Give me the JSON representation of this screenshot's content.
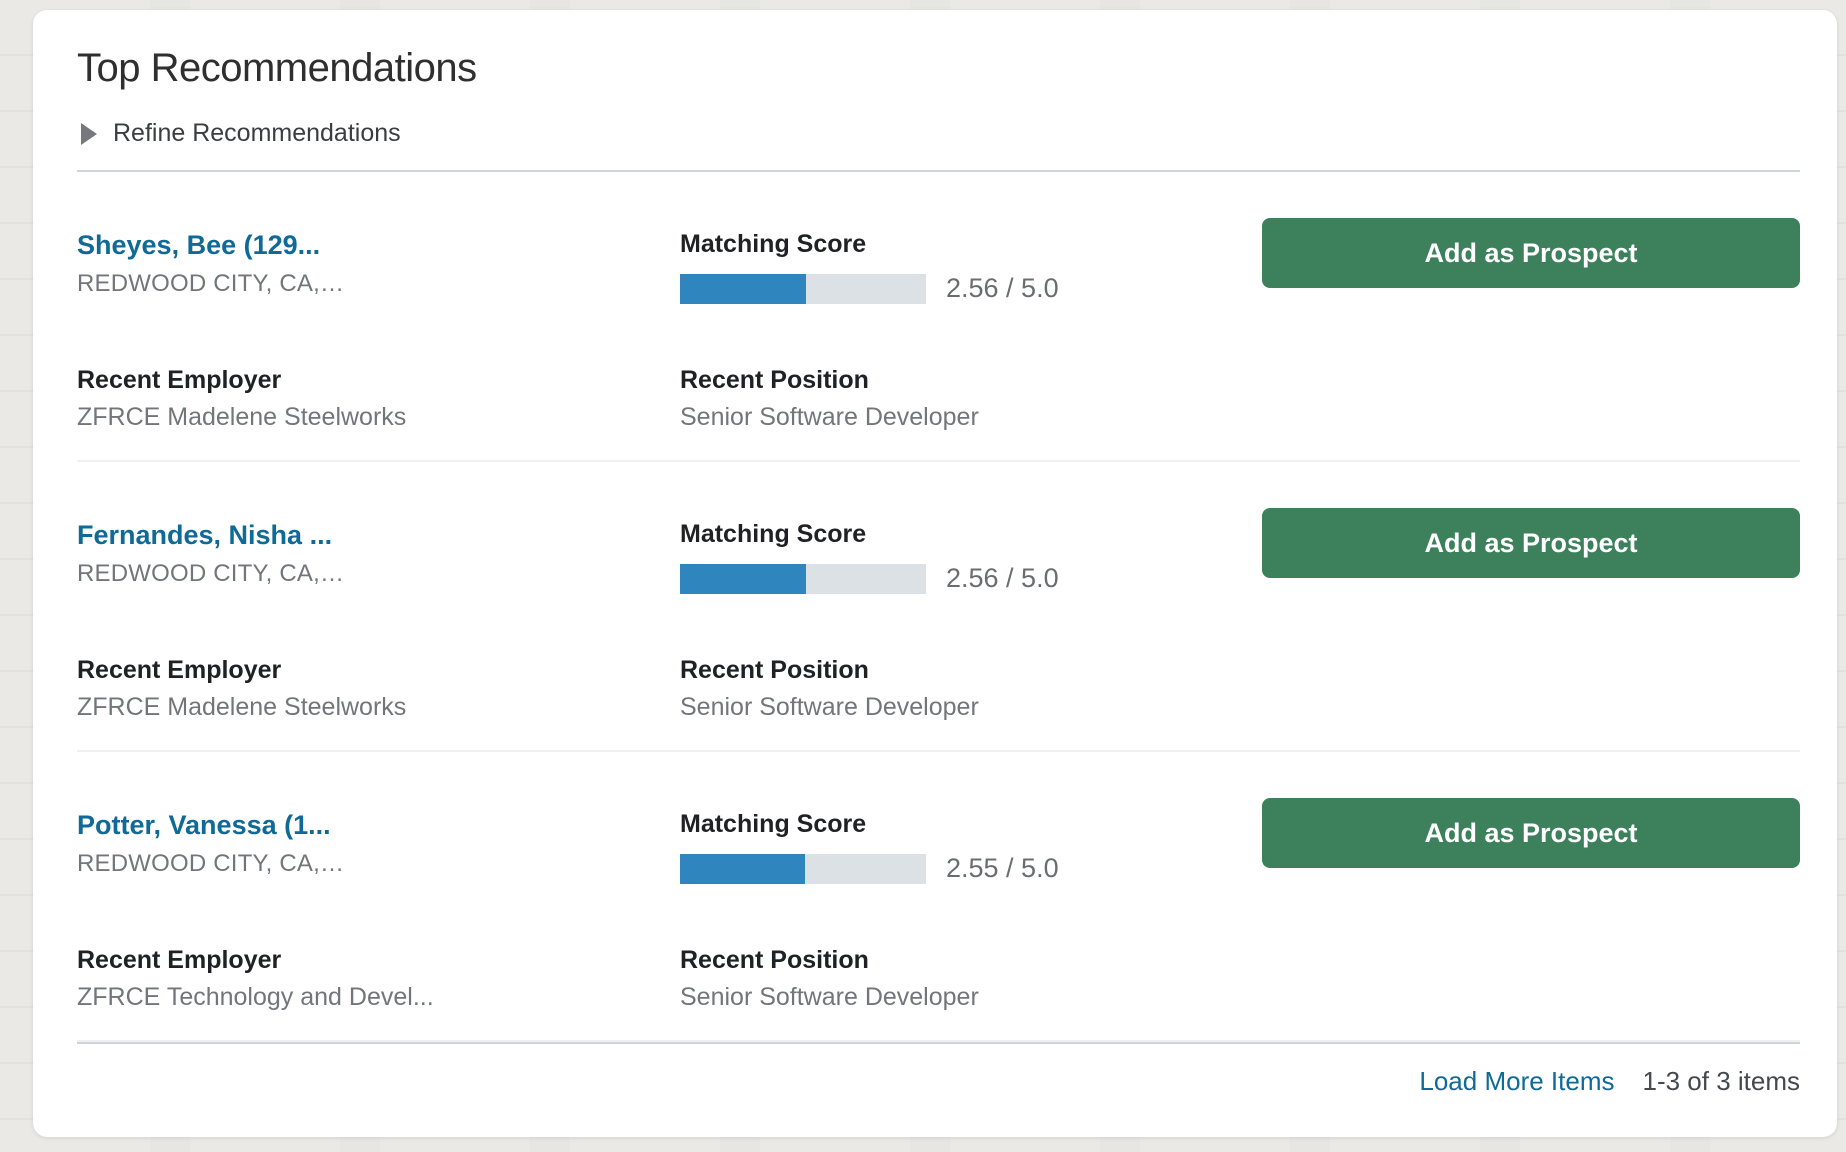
{
  "panel": {
    "title": "Top Recommendations",
    "refine_label": "Refine Recommendations"
  },
  "labels": {
    "matching_score": "Matching Score",
    "recent_employer": "Recent Employer",
    "recent_position": "Recent Position",
    "add_button": "Add as Prospect"
  },
  "items": [
    {
      "name": "Sheyes, Bee (129...",
      "location": "REDWOOD CITY, CA,…",
      "score_display": "2.56 / 5.0",
      "score_percent": 51.2,
      "employer": "ZFRCE Madelene Steelworks",
      "position": "Senior Software Developer"
    },
    {
      "name": "Fernandes, Nisha ...",
      "location": "REDWOOD CITY, CA,…",
      "score_display": "2.56 / 5.0",
      "score_percent": 51.2,
      "employer": "ZFRCE Madelene Steelworks",
      "position": "Senior Software Developer"
    },
    {
      "name": "Potter, Vanessa (1...",
      "location": "REDWOOD CITY, CA,…",
      "score_display": "2.55 / 5.0",
      "score_percent": 51.0,
      "employer": "ZFRCE Technology and Devel...",
      "position": "Senior Software Developer"
    }
  ],
  "footer": {
    "load_more": "Load More Items",
    "range": "1-3 of 3 items"
  },
  "colors": {
    "link": "#0f6a97",
    "button-green": "#3d815c",
    "bar-fill": "#2f86bf",
    "bar-track": "#dce1e5",
    "divider-strong": "#ccd6de",
    "divider-light": "#f0f0f0",
    "label-dark": "#1f2124",
    "muted": "#72767b",
    "title": "#2f2f2f"
  }
}
